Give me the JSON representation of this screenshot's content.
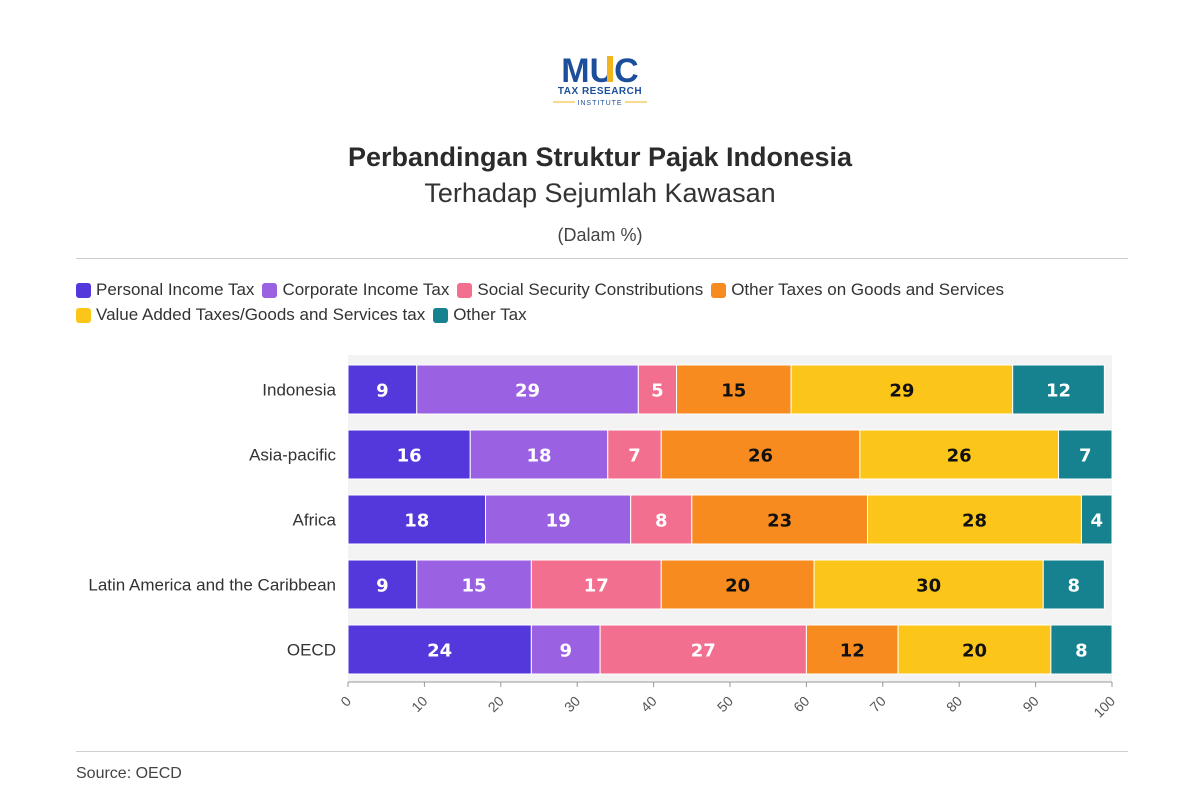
{
  "logo": {
    "main": "MUC",
    "line1": "TAX RESEARCH",
    "line2": "INSTITUTE"
  },
  "title": "Perbandingan Struktur Pajak Indonesia",
  "subtitle": "Terhadap Sejumlah Kawasan",
  "unit": "(Dalam %)",
  "source": "Source: OECD",
  "colors": {
    "personal": "#5438dc",
    "corporate": "#9b61e3",
    "social": "#f36f8f",
    "other_goods": "#f78b1f",
    "vat": "#fcc51a",
    "other": "#168290",
    "plot_bg": "#f3f3f3"
  },
  "chart_data": {
    "type": "bar",
    "orientation": "horizontal",
    "stacked": true,
    "categories": [
      "Indonesia",
      "Asia-pacific",
      "Africa",
      "Latin America and the Caribbean",
      "OECD"
    ],
    "series": [
      {
        "name": "Personal Income Tax",
        "color": "#5438dc",
        "values": [
          9,
          16,
          18,
          9,
          24
        ]
      },
      {
        "name": "Corporate Income Tax",
        "color": "#9b61e3",
        "values": [
          29,
          18,
          19,
          15,
          9
        ]
      },
      {
        "name": "Social Security Constributions",
        "color": "#f36f8f",
        "values": [
          5,
          7,
          8,
          17,
          27
        ]
      },
      {
        "name": "Other Taxes on Goods and Services",
        "color": "#f78b1f",
        "values": [
          15,
          26,
          23,
          20,
          12
        ]
      },
      {
        "name": "Value Added Taxes/Goods and Services tax",
        "color": "#fcc51a",
        "values": [
          29,
          26,
          28,
          30,
          20
        ]
      },
      {
        "name": "Other Tax",
        "color": "#168290",
        "values": [
          12,
          7,
          4,
          8,
          8
        ]
      }
    ],
    "label_text_color": [
      "#ffffff",
      "#ffffff",
      "#ffffff",
      "#111111",
      "#111111",
      "#ffffff"
    ],
    "xlim": [
      0,
      100
    ],
    "xticks": [
      0,
      10,
      20,
      30,
      40,
      50,
      60,
      70,
      80,
      90,
      100
    ],
    "legend": "top-left"
  }
}
